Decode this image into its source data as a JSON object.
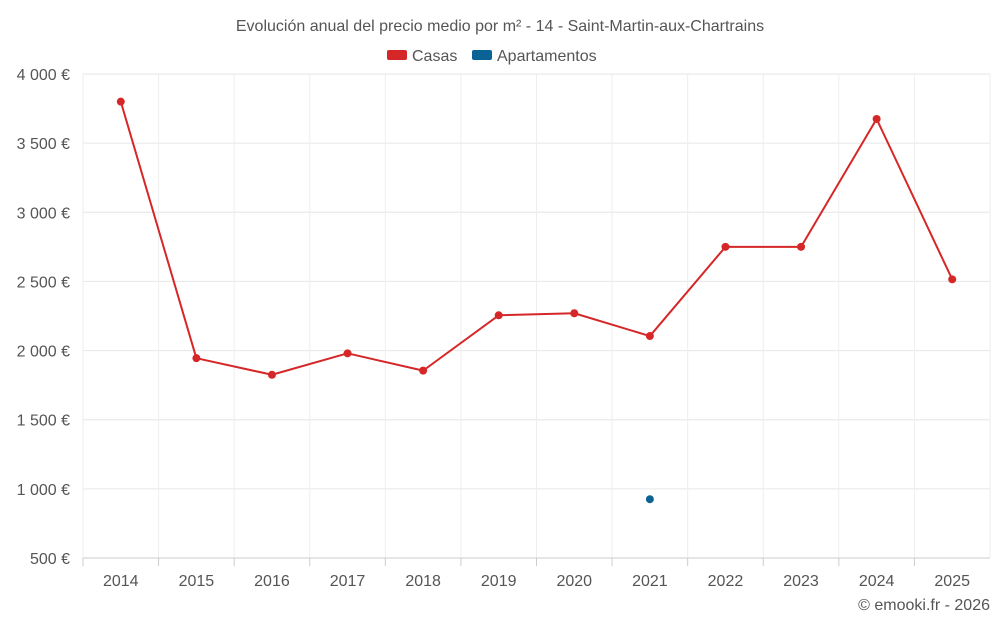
{
  "chart_data": {
    "type": "line",
    "title": "Evolución anual del precio medio por m² - 14 - Saint-Martin-aux-Chartrains",
    "categories": [
      "2014",
      "2015",
      "2016",
      "2017",
      "2018",
      "2019",
      "2020",
      "2021",
      "2022",
      "2023",
      "2024",
      "2025"
    ],
    "series": [
      {
        "name": "Casas",
        "color": "#d62728",
        "values": [
          3800,
          1945,
          1825,
          1980,
          1855,
          2255,
          2270,
          2105,
          2750,
          2750,
          3675,
          2515
        ]
      },
      {
        "name": "Apartamentos",
        "color": "#0b6295",
        "values": [
          null,
          null,
          null,
          null,
          null,
          null,
          null,
          925,
          null,
          null,
          null,
          null
        ]
      }
    ],
    "ylim": [
      500,
      4000
    ],
    "yticks": [
      500,
      1000,
      1500,
      2000,
      2500,
      3000,
      3500,
      4000
    ],
    "ytick_labels": [
      "500 €",
      "1 000 €",
      "1 500 €",
      "2 000 €",
      "2 500 €",
      "3 000 €",
      "3 500 €",
      "4 000 €"
    ],
    "xlabel": "",
    "ylabel": "",
    "legend_position": "top-center",
    "grid": true
  },
  "credit": "© emooki.fr - 2026"
}
